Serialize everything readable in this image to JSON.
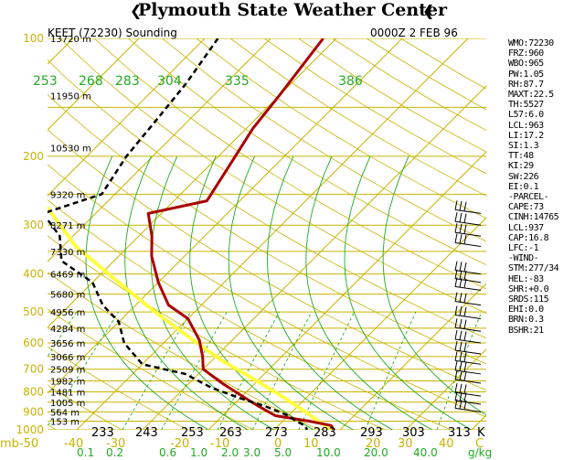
{
  "header": {
    "title": "Plymouth State Weather Center"
  },
  "plot": {
    "station_label": "KEET (72230) Sounding",
    "time_label": "0000Z  2 FEB 96",
    "colors": {
      "isobar": "#c8b400",
      "isotherm": "#c8b400",
      "dry_adiabat": "#c8b400",
      "moist_adiabat": "#22aa22",
      "mixing_ratio": "#22aa22",
      "temperature": "#aa0000",
      "dewpoint": "#000000",
      "parcel": "#ffff40",
      "pressure_label": "#c8b400",
      "theta_label": "#22aa22"
    }
  },
  "chart_data": {
    "type": "skew-t",
    "pressure_levels": [
      "100",
      "200",
      "300",
      "400",
      "500",
      "600",
      "700",
      "800",
      "900",
      "1000"
    ],
    "height_labels": [
      {
        "p": 100,
        "label": "13720 m"
      },
      {
        "p": 140,
        "label": "11950 m"
      },
      {
        "p": 190,
        "label": "10530 m"
      },
      {
        "p": 250,
        "label": "9320 m"
      },
      {
        "p": 300,
        "label": "8271 m"
      },
      {
        "p": 350,
        "label": "7330 m"
      },
      {
        "p": 400,
        "label": "6469 m"
      },
      {
        "p": 450,
        "label": "5680 m"
      },
      {
        "p": 500,
        "label": "4956 m"
      },
      {
        "p": 550,
        "label": "4284 m"
      },
      {
        "p": 600,
        "label": "3656 m"
      },
      {
        "p": 650,
        "label": "3066 m"
      },
      {
        "p": 700,
        "label": "2509 m"
      },
      {
        "p": 750,
        "label": "1982 m"
      },
      {
        "p": 800,
        "label": "1481 m"
      },
      {
        "p": 850,
        "label": "1005 m"
      },
      {
        "p": 900,
        "label": "564 m"
      },
      {
        "p": 950,
        "label": "153 m"
      }
    ],
    "temperature_ticks": [
      "mb-50",
      "-40",
      "-30",
      "-20",
      "-10",
      "0",
      "10",
      "20",
      "30",
      "40",
      "C"
    ],
    "kelvin_ticks": [
      "233",
      "243",
      "253",
      "263",
      "273",
      "283",
      "293",
      "303",
      "313",
      "K"
    ],
    "mixing_ratio_ticks": [
      "0.1",
      "0.2",
      "0.6",
      "1.0",
      "2.0",
      "3.0",
      "5.0",
      "10.0",
      "20.0",
      "40.0",
      "g/kg"
    ],
    "theta_ticks": [
      "253",
      "268",
      "283",
      "304",
      "335",
      "386"
    ],
    "temperature_profile": [
      [
        100,
        -52
      ],
      [
        140,
        -50
      ],
      [
        170,
        -49
      ],
      [
        210,
        -47
      ],
      [
        260,
        -45
      ],
      [
        280,
        -52
      ],
      [
        320,
        -48
      ],
      [
        360,
        -45
      ],
      [
        420,
        -40
      ],
      [
        480,
        -35
      ],
      [
        520,
        -30
      ],
      [
        590,
        -25
      ],
      [
        650,
        -22
      ],
      [
        700,
        -20
      ],
      [
        760,
        -15
      ],
      [
        820,
        -10
      ],
      [
        870,
        -6
      ],
      [
        920,
        -2
      ],
      [
        950,
        4
      ],
      [
        975,
        8
      ],
      [
        1000,
        9
      ]
    ],
    "dewpoint_profile": [
      [
        100,
        -68
      ],
      [
        130,
        -66
      ],
      [
        160,
        -65
      ],
      [
        200,
        -64
      ],
      [
        250,
        -62
      ],
      [
        280,
        -68
      ],
      [
        320,
        -62
      ],
      [
        370,
        -58
      ],
      [
        420,
        -50
      ],
      [
        480,
        -45
      ],
      [
        530,
        -40
      ],
      [
        600,
        -36
      ],
      [
        680,
        -30
      ],
      [
        720,
        -22
      ],
      [
        780,
        -16
      ],
      [
        830,
        -10
      ],
      [
        870,
        -5
      ],
      [
        920,
        0
      ],
      [
        950,
        2
      ],
      [
        975,
        4
      ],
      [
        1000,
        5
      ]
    ],
    "parcel_profile": [
      [
        180,
        -85
      ],
      [
        260,
        -70
      ],
      [
        340,
        -58
      ],
      [
        420,
        -46
      ],
      [
        500,
        -36
      ],
      [
        580,
        -27
      ],
      [
        660,
        -19
      ],
      [
        740,
        -11
      ],
      [
        820,
        -4
      ],
      [
        900,
        2
      ],
      [
        960,
        6
      ],
      [
        1000,
        9
      ]
    ],
    "wind_barbs_pressures": [
      280,
      300,
      320,
      340,
      400,
      420,
      440,
      480,
      520,
      560,
      600,
      640,
      680,
      720,
      760,
      820,
      860,
      900
    ],
    "indices": [
      "WMO:72230",
      "FRZ:960",
      "WBO:965",
      "PW:1.05",
      "RH:87.7",
      "MAXT:22.5",
      "TH:5527",
      "L57:6.0",
      "LCL:963",
      "LI:17.2",
      "SI:1.3",
      "TT:48",
      "KI:29",
      "SW:226",
      "EI:0.1",
      "-PARCEL-",
      "CAPE:73",
      "CINH:14765",
      "LCL:937",
      "CAP:16.8",
      "LFC:-1",
      "-WIND-",
      "STM:277/34",
      "HEL:-83",
      "SHR:+0.0",
      "SRDS:115",
      "EHI:0.0",
      "BRN:0.3",
      "BSHR:21"
    ]
  }
}
